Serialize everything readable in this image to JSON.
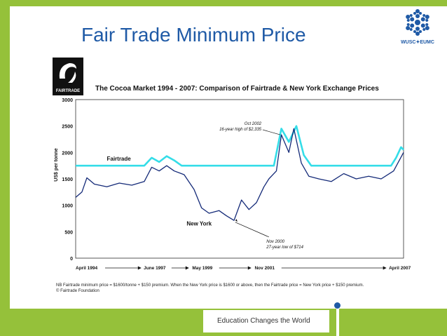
{
  "slide": {
    "title": "Fair Trade Minimum Price",
    "logo_text": "WUSC✦EUMC",
    "fairtrade_logo_text": "FAIRTRADE",
    "slogan": "Education Changes the World"
  },
  "colors": {
    "green": "#95c13a",
    "blue": "#1f5aa6",
    "fairtrade_line": "#34dde8",
    "newyork_line": "#142a78"
  },
  "chart_data": {
    "type": "line",
    "title": "The Cocoa Market 1994 - 2007: Comparison of Fairtrade & New York Exchange Prices",
    "ylabel": "US$ per tonne",
    "xlabel": "",
    "ylim": [
      0,
      3000
    ],
    "yticks": [
      "0",
      "500",
      "1000",
      "1500",
      "2000",
      "2500",
      "3000"
    ],
    "xticks": [
      "April 1994",
      "June 1997",
      "May 1999",
      "Nov 2001",
      "April 2007"
    ],
    "xtick_positions": [
      1994.25,
      1997.42,
      1999.33,
      2001.83,
      2007.25
    ],
    "xlim": [
      1994.25,
      2007.4
    ],
    "grid": true,
    "series": [
      {
        "name": "Fairtrade",
        "x": [
          1994.25,
          1997.0,
          1997.3,
          1997.6,
          1997.9,
          1998.2,
          1998.5,
          2002.2,
          2002.5,
          2002.8,
          2003.1,
          2003.4,
          2003.7,
          2006.9,
          2007.1,
          2007.3,
          2007.4
        ],
        "values": [
          1750,
          1750,
          1900,
          1820,
          1930,
          1850,
          1750,
          1750,
          2450,
          2200,
          2500,
          1950,
          1750,
          1750,
          1900,
          2100,
          2050
        ]
      },
      {
        "name": "New York",
        "x": [
          1994.25,
          1994.5,
          1994.7,
          1995.0,
          1995.5,
          1996.0,
          1996.5,
          1997.0,
          1997.3,
          1997.6,
          1997.9,
          1998.2,
          1998.6,
          1999.0,
          1999.3,
          1999.6,
          2000.0,
          2000.3,
          2000.6,
          2000.9,
          2001.2,
          2001.5,
          2001.8,
          2002.0,
          2002.3,
          2002.5,
          2002.8,
          2003.0,
          2003.3,
          2003.6,
          2004.0,
          2004.5,
          2005.0,
          2005.5,
          2006.0,
          2006.5,
          2007.0,
          2007.4
        ],
        "values": [
          1150,
          1250,
          1520,
          1400,
          1350,
          1420,
          1380,
          1450,
          1720,
          1650,
          1750,
          1650,
          1580,
          1300,
          950,
          850,
          900,
          800,
          714,
          1100,
          920,
          1050,
          1350,
          1500,
          1650,
          2335,
          2000,
          2450,
          1800,
          1550,
          1500,
          1450,
          1600,
          1500,
          1550,
          1500,
          1650,
          2000
        ]
      }
    ],
    "annotations": [
      "Fairtrade",
      "New York",
      "Oct 2002",
      "16-year high of $2,335",
      "Nov 2000",
      "27-year low of $714"
    ],
    "footnote": [
      "NB Fairtrade minimum price = $1600/tonne + $150 premium. When the New York price is $1600 or above, then the Fairtrade price = New York price + $150 premium.",
      "© Fairtrade Foundation"
    ]
  }
}
